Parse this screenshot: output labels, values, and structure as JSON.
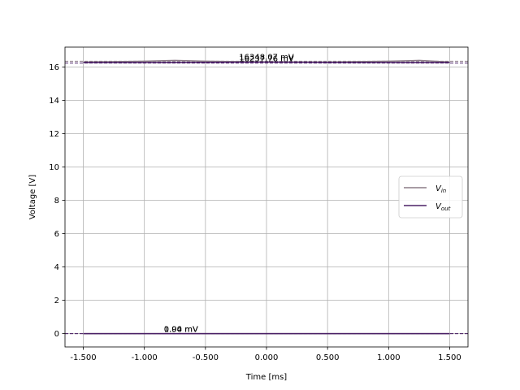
{
  "chart_data": {
    "type": "line",
    "title": "",
    "xlabel": "Time [ms]",
    "ylabel": "Voltage [V]",
    "xlim": [
      -1.65,
      1.65
    ],
    "ylim": [
      -0.8,
      17.2
    ],
    "x_ticks": [
      -1.5,
      -1.0,
      -0.5,
      0.0,
      0.5,
      1.0,
      1.5
    ],
    "x_tick_labels": [
      "-1.500",
      "-1.000",
      "-0.500",
      "0.000",
      "0.500",
      "1.000",
      "1.500"
    ],
    "y_ticks": [
      0,
      2,
      4,
      6,
      8,
      10,
      12,
      14,
      16
    ],
    "y_tick_labels": [
      "0",
      "2",
      "4",
      "6",
      "8",
      "10",
      "12",
      "14",
      "16"
    ],
    "grid": true,
    "legend_position": "center-right",
    "series": [
      {
        "name": "V_in",
        "legend_main": "V",
        "legend_sub": "in",
        "color": "#8b7b86",
        "segments": [
          {
            "x": [
              -1.5,
              -1.0,
              -0.75,
              -0.5,
              0.0,
              0.5,
              1.0,
              1.25,
              1.5
            ],
            "y": [
              16.3,
              16.35,
              16.4,
              16.35,
              16.3,
              16.3,
              16.35,
              16.4,
              16.3
            ]
          },
          {
            "x": [
              -1.5,
              0.0,
              1.5
            ],
            "y": [
              0.0,
              0.0,
              0.0
            ]
          }
        ]
      },
      {
        "name": "V_out",
        "legend_main": "V",
        "legend_sub": "out",
        "color": "#4b2067",
        "segments": [
          {
            "x": [
              -1.5,
              -1.0,
              -0.5,
              0.0,
              0.5,
              1.0,
              1.5
            ],
            "y": [
              16.28,
              16.28,
              16.29,
              16.3,
              16.29,
              16.28,
              16.28
            ]
          },
          {
            "x": [
              -1.5,
              0.0,
              1.5
            ],
            "y": [
              0.0,
              0.0,
              0.0
            ]
          }
        ]
      }
    ],
    "reference_lines": [
      {
        "y": 16.35,
        "color": "#8b7b86"
      },
      {
        "y": 16.24,
        "color": "#4b2067"
      },
      {
        "y": 0.0,
        "color": "#8b7b86"
      },
      {
        "y": 0.0,
        "color": "#4b2067"
      }
    ],
    "annotations": [
      {
        "text": "16348.07 mV",
        "x": 0.0,
        "y": 16.35
      },
      {
        "text": "16237.76 mV",
        "x": 0.0,
        "y": 16.24
      },
      {
        "text": "1.94 mV",
        "x": -0.7,
        "y": 0.0
      },
      {
        "text": "0.00 mV",
        "x": -0.7,
        "y": 0.0
      }
    ]
  }
}
